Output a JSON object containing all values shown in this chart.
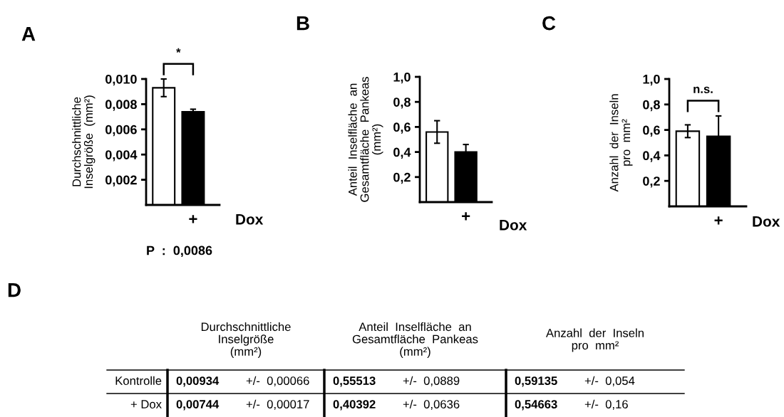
{
  "chart_data": [
    {
      "type": "bar",
      "title": "A",
      "ylabel": "Durchschnittliche\nInselgröße  (mm²)",
      "xlabel": "Dox",
      "categories": [
        null,
        "+"
      ],
      "values": [
        0.0093,
        0.0074
      ],
      "errors": [
        0.0007,
        0.0002
      ],
      "colors": [
        "#ffffff",
        "#000000"
      ],
      "ylim": [
        0,
        0.01
      ],
      "yticks": [
        {
          "value": 0.002,
          "label": "0,002"
        },
        {
          "value": 0.004,
          "label": "0,004"
        },
        {
          "value": 0.006,
          "label": "0,006"
        },
        {
          "value": 0.008,
          "label": "0,008"
        },
        {
          "value": 0.01,
          "label": "0,010"
        }
      ],
      "annotations": [
        "*",
        "P  :  0,0086"
      ]
    },
    {
      "type": "bar",
      "title": "B",
      "ylabel": "Anteil  Inselfläche  an\nGesamtfläche  Pankeas\n(mm²)",
      "xlabel": "Dox",
      "categories": [
        null,
        "+"
      ],
      "values": [
        0.56,
        0.4
      ],
      "errors": [
        0.09,
        0.06
      ],
      "colors": [
        "#ffffff",
        "#000000"
      ],
      "ylim": [
        0,
        1.0
      ],
      "yticks": [
        {
          "value": 0.2,
          "label": "0,2"
        },
        {
          "value": 0.4,
          "label": "0,4"
        },
        {
          "value": 0.6,
          "label": "0,6"
        },
        {
          "value": 0.8,
          "label": "0,8"
        },
        {
          "value": 1.0,
          "label": "1,0"
        }
      ]
    },
    {
      "type": "bar",
      "title": "C",
      "ylabel": "Anzahl  der  Inseln\npro  mm²",
      "xlabel": "Dox",
      "categories": [
        null,
        "+"
      ],
      "values": [
        0.59,
        0.55
      ],
      "errors": [
        0.05,
        0.16
      ],
      "colors": [
        "#ffffff",
        "#000000"
      ],
      "ylim": [
        0,
        1.0
      ],
      "yticks": [
        {
          "value": 0.2,
          "label": "0,2"
        },
        {
          "value": 0.4,
          "label": "0,4"
        },
        {
          "value": 0.6,
          "label": "0,6"
        },
        {
          "value": 0.8,
          "label": "0,8"
        },
        {
          "value": 1.0,
          "label": "1,0"
        }
      ],
      "annotations": [
        "n.s."
      ]
    },
    {
      "type": "other",
      "title": "D",
      "categories": [
        "Kontrolle",
        "+ Dox"
      ],
      "annotations": [
        "Durchschnittliche\nInselgröße\n(mm²)",
        "Anteil  Inselfläche  an\nGesamtfläche  Pankeas\n(mm²)",
        "Anzahl  der  Inseln\npro  mm²",
        "0,00934",
        "+/-  0,00066",
        "0,55513",
        "+/-  0,0889",
        "0,59135",
        "+/-  0,054",
        "0,00744",
        "+/-  0,00017",
        "0,40392",
        "+/-  0,0636",
        "0,54663",
        "+/-  0,16"
      ]
    }
  ]
}
